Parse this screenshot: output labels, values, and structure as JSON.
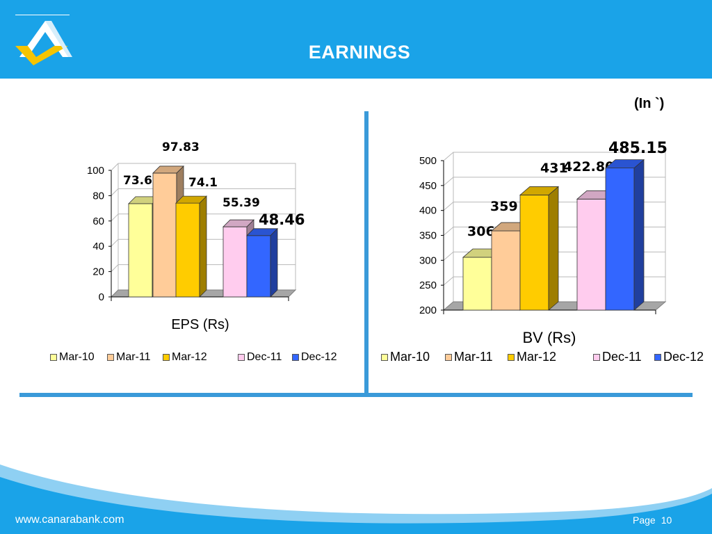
{
  "header": {
    "title": "EARNINGS"
  },
  "unit_label": "(In `)",
  "footer": {
    "url": "www.canarabank.com",
    "page_label": "Page",
    "page_number": "10"
  },
  "colors": {
    "header_bg": "#1aa3e8",
    "divider": "#3a9ad9",
    "series": [
      "#ffff99",
      "#ffcc99",
      "#ffcc00",
      "#ffccee",
      "#3366ff"
    ]
  },
  "logo_icon": "canara-bank-logo-icon",
  "chart_data": [
    {
      "type": "bar",
      "categories": [
        "Mar-10",
        "Mar-11",
        "Mar-12",
        "Dec-11",
        "Dec-12"
      ],
      "values": [
        73.69,
        97.83,
        74.1,
        55.39,
        48.46
      ],
      "value_labels": [
        "73.69",
        "97.83",
        "74.1",
        "55.39",
        "48.46"
      ],
      "xlabel": "EPS (Rs)",
      "ylabel": "",
      "ylim": [
        0,
        100
      ],
      "yticks": [
        "0",
        "20",
        "40",
        "60",
        "80",
        "100"
      ],
      "legend": [
        "Mar-10",
        "Mar-11",
        "Mar-12",
        "Dec-11",
        "Dec-12"
      ],
      "legend_position": "bottom",
      "grid": true,
      "style": "3d"
    },
    {
      "type": "bar",
      "categories": [
        "Mar-10",
        "Mar-11",
        "Mar-12",
        "Dec-11",
        "Dec-12"
      ],
      "values": [
        306,
        359,
        431,
        422.8,
        485.15
      ],
      "value_labels": [
        "306",
        "359",
        "431",
        "422.80",
        "485.15"
      ],
      "xlabel": "BV (Rs)",
      "ylabel": "",
      "ylim": [
        200,
        500
      ],
      "yticks": [
        "200",
        "250",
        "300",
        "350",
        "400",
        "450",
        "500"
      ],
      "legend": [
        "Mar-10",
        "Mar-11",
        "Mar-12",
        "Dec-11",
        "Dec-12"
      ],
      "legend_position": "bottom",
      "grid": true,
      "style": "3d"
    }
  ]
}
